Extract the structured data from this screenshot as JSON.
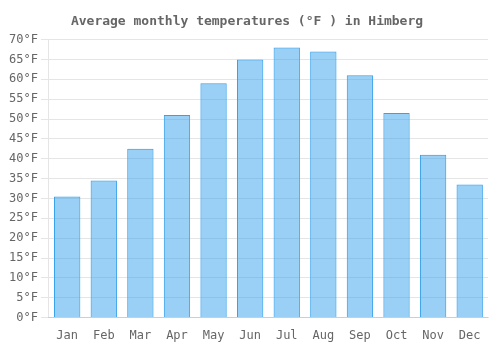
{
  "chart_data": {
    "type": "bar",
    "title": "Average monthly temperatures (°F ) in Himberg",
    "categories": [
      "Jan",
      "Feb",
      "Mar",
      "Apr",
      "May",
      "Jun",
      "Jul",
      "Aug",
      "Sep",
      "Oct",
      "Nov",
      "Dec"
    ],
    "values": [
      30.5,
      34.5,
      42.5,
      51.0,
      59.0,
      65.0,
      68.0,
      67.0,
      61.0,
      51.5,
      41.0,
      33.5
    ],
    "ylim": [
      0,
      70
    ],
    "yticks": [
      {
        "value": 0,
        "label": "0°F"
      },
      {
        "value": 5,
        "label": "5°F"
      },
      {
        "value": 10,
        "label": "10°F"
      },
      {
        "value": 15,
        "label": "15°F"
      },
      {
        "value": 20,
        "label": "20°F"
      },
      {
        "value": 25,
        "label": "25°F"
      },
      {
        "value": 30,
        "label": "30°F"
      },
      {
        "value": 35,
        "label": "35°F"
      },
      {
        "value": 40,
        "label": "40°F"
      },
      {
        "value": 45,
        "label": "45°F"
      },
      {
        "value": 50,
        "label": "50°F"
      },
      {
        "value": 55,
        "label": "55°F"
      },
      {
        "value": 60,
        "label": "60°F"
      },
      {
        "value": 65,
        "label": "65°F"
      },
      {
        "value": 70,
        "label": "70°F"
      }
    ],
    "grid": true
  }
}
